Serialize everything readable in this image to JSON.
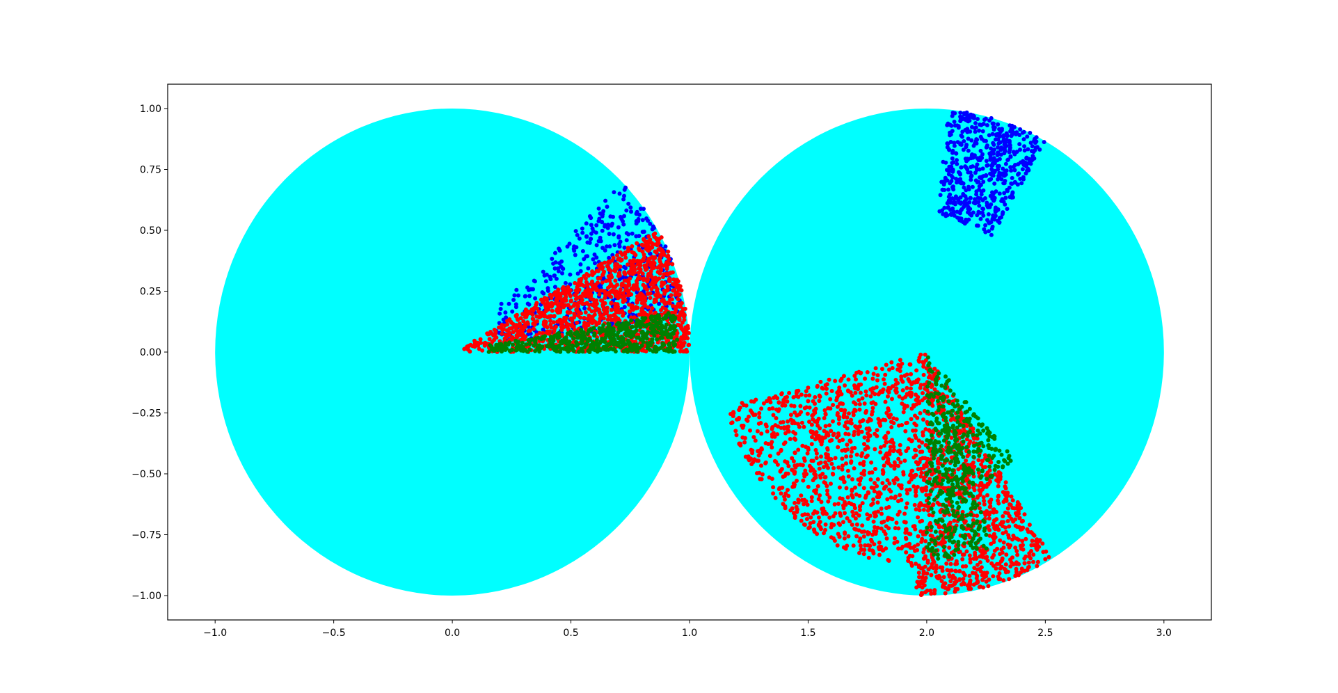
{
  "chart_data": {
    "type": "scatter",
    "title": "",
    "xlabel": "",
    "ylabel": "",
    "xlim": [
      -1.2,
      3.2
    ],
    "ylim": [
      -1.1,
      1.1
    ],
    "x_ticks": [
      -1.0,
      -0.5,
      0.0,
      0.5,
      1.0,
      1.5,
      2.0,
      2.5,
      3.0
    ],
    "x_tick_labels": [
      "−1.0",
      "−0.5",
      "0.0",
      "0.5",
      "1.0",
      "1.5",
      "2.0",
      "2.5",
      "3.0"
    ],
    "y_ticks": [
      1.0,
      0.75,
      0.5,
      0.25,
      0.0,
      -0.25,
      -0.5,
      -0.75,
      -1.0
    ],
    "y_tick_labels": [
      "1.00",
      "0.75",
      "0.50",
      "0.25",
      "0.00",
      "−0.25",
      "−0.50",
      "−0.75",
      "−1.00"
    ],
    "grid": false,
    "legend": "none",
    "discs": [
      {
        "center": [
          0.0,
          0.0
        ],
        "radius": 1.0,
        "color": "#00ffff"
      },
      {
        "center": [
          2.0,
          0.0
        ],
        "radius": 1.0,
        "color": "#00ffff"
      }
    ],
    "series": [
      {
        "color": "#0000ff",
        "sectors": [
          {
            "cx": 0.0,
            "cy": 0.0,
            "r_min": 0.2,
            "r_max": 1.0,
            "angle_deg": [
              8,
              44
            ],
            "count": 460
          },
          {
            "cx": 2.0,
            "cy": 0.0,
            "r_min": 0.55,
            "r_max": 1.0,
            "angle_deg": [
              60,
              85
            ],
            "count": 560
          }
        ]
      },
      {
        "color": "#ff0000",
        "sectors": [
          {
            "cx": 0.0,
            "cy": 0.0,
            "r_min": 0.05,
            "r_max": 1.0,
            "angle_deg": [
              0,
              30
            ],
            "count": 1300
          },
          {
            "cx": 2.0,
            "cy": 0.0,
            "r_min": 0.0,
            "r_max": 1.0,
            "angle_deg": [
              -93,
              -58
            ],
            "count": 950
          },
          {
            "cx": 2.0,
            "cy": 0.0,
            "r_min": 0.0,
            "r_max": 0.88,
            "angle_deg": [
              -165,
              -93
            ],
            "count": 1050
          }
        ]
      },
      {
        "color": "#008000",
        "sectors": [
          {
            "cx": 0.0,
            "cy": 0.0,
            "r_min": 0.15,
            "r_max": 0.95,
            "angle_deg": [
              0,
              10
            ],
            "count": 500
          },
          {
            "cx": 2.0,
            "cy": 0.0,
            "r_min": 0.0,
            "r_max": 0.85,
            "angle_deg": [
              -90,
              -70
            ],
            "count": 320
          },
          {
            "cx": 2.0,
            "cy": 0.0,
            "r_min": 0.1,
            "r_max": 0.58,
            "angle_deg": [
              -75,
              -50
            ],
            "count": 160
          }
        ]
      }
    ]
  }
}
